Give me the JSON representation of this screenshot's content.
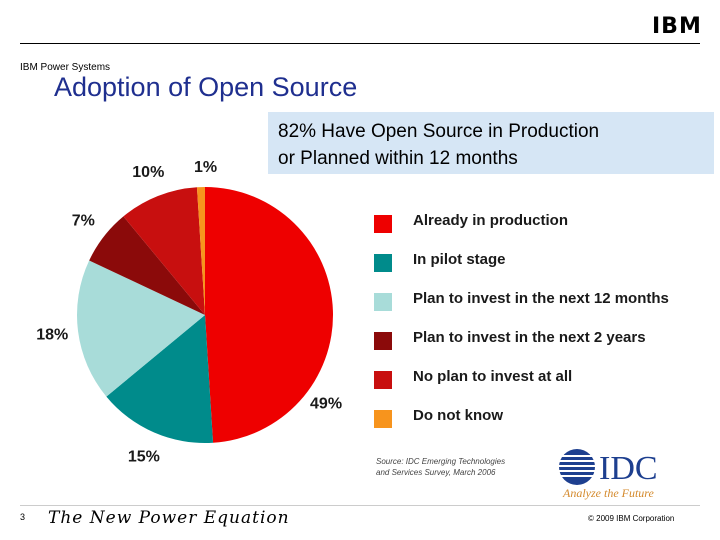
{
  "header": {
    "logo_text": "IBM",
    "brand": "IBM Power Systems",
    "title": "Adoption of Open Source"
  },
  "callout": {
    "line1": "82% Have Open Source in Production",
    "line2": "or Planned within 12 months"
  },
  "chart_data": {
    "type": "pie",
    "slices": [
      {
        "label": "Already in production",
        "value": 49,
        "display": "49%",
        "color": "#ee0000"
      },
      {
        "label": "In pilot stage",
        "value": 15,
        "display": "15%",
        "color": "#008b8b"
      },
      {
        "label": "Plan to invest in the next 12 months",
        "value": 18,
        "display": "18%",
        "color": "#a8dcd9"
      },
      {
        "label": "Plan to invest in the next 2 years",
        "value": 7,
        "display": "7%",
        "color": "#8b0a0a"
      },
      {
        "label": "No plan to invest at all",
        "value": 10,
        "display": "10%",
        "color": "#c80f0f"
      },
      {
        "label": "Do not know",
        "value": 1,
        "display": "1%",
        "color": "#f7941d"
      }
    ]
  },
  "source": {
    "text": "Source: IDC Emerging Technologies\nand Services Survey, March 2006"
  },
  "idc": {
    "name": "IDC",
    "tagline": "Analyze the Future"
  },
  "footer": {
    "page": "3",
    "tagline": "The New Power Equation",
    "copyright": "© 2009 IBM Corporation"
  }
}
